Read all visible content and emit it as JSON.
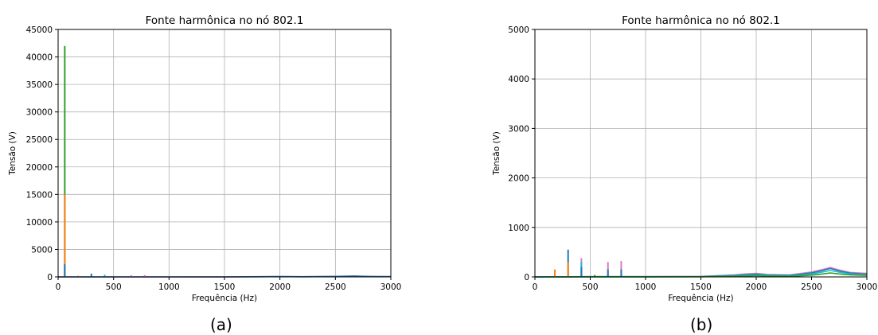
{
  "chart_data": [
    {
      "panel": "(a)",
      "type": "line",
      "title": "Fonte harmônica no nó 802.1",
      "xlabel": "Frequência (Hz)",
      "ylabel": "Tensão (V)",
      "xlim": [
        0,
        3000
      ],
      "ylim": [
        0,
        45000
      ],
      "xticks": [
        0,
        500,
        1000,
        1500,
        2000,
        2500,
        3000
      ],
      "yticks": [
        0,
        5000,
        10000,
        15000,
        20000,
        25000,
        30000,
        35000,
        40000,
        45000
      ],
      "grid": true,
      "spikes": [
        {
          "x": 60,
          "y": 42000,
          "color": "#2ca02c"
        },
        {
          "x": 60,
          "y": 15000,
          "color": "#ff7f0e"
        },
        {
          "x": 60,
          "y": 2300,
          "color": "#1f77b4"
        },
        {
          "x": 180,
          "y": 200,
          "color": "#ff7f0e"
        },
        {
          "x": 300,
          "y": 600,
          "color": "#1f77b4"
        },
        {
          "x": 420,
          "y": 400,
          "color": "#17becf"
        },
        {
          "x": 660,
          "y": 320,
          "color": "#e377c2"
        },
        {
          "x": 780,
          "y": 330,
          "color": "#e377c2"
        }
      ],
      "series": [
        {
          "color": "#e377c2",
          "x": [
            0,
            500,
            1000,
            1500,
            1800,
            2000,
            2200,
            2500,
            2600,
            2670,
            2750,
            2850,
            3000
          ],
          "values": [
            0,
            0,
            0,
            10,
            40,
            70,
            40,
            100,
            140,
            180,
            120,
            80,
            60
          ]
        },
        {
          "color": "#1f77b4",
          "x": [
            0,
            500,
            1000,
            1500,
            1800,
            2000,
            2200,
            2500,
            2600,
            2670,
            2750,
            2850,
            3000
          ],
          "values": [
            0,
            0,
            0,
            5,
            30,
            55,
            30,
            80,
            120,
            165,
            105,
            65,
            50
          ]
        }
      ]
    },
    {
      "panel": "(b)",
      "type": "line",
      "title": "Fonte harmônica no nó 802.1",
      "xlabel": "Frequência (Hz)",
      "ylabel": "Tensão (V)",
      "xlim": [
        0,
        3000
      ],
      "ylim": [
        0,
        5000
      ],
      "xticks": [
        0,
        500,
        1000,
        1500,
        2000,
        2500,
        3000
      ],
      "yticks": [
        0,
        1000,
        2000,
        3000,
        4000,
        5000
      ],
      "grid": true,
      "spikes": [
        {
          "x": 180,
          "y": 150,
          "color": "#ff7f0e"
        },
        {
          "x": 300,
          "y": 550,
          "color": "#1f77b4"
        },
        {
          "x": 300,
          "y": 300,
          "color": "#ff7f0e"
        },
        {
          "x": 420,
          "y": 380,
          "color": "#e377c2"
        },
        {
          "x": 420,
          "y": 300,
          "color": "#17becf"
        },
        {
          "x": 420,
          "y": 200,
          "color": "#1f77b4"
        },
        {
          "x": 540,
          "y": 40,
          "color": "#2ca02c"
        },
        {
          "x": 660,
          "y": 300,
          "color": "#e377c2"
        },
        {
          "x": 660,
          "y": 150,
          "color": "#1f77b4"
        },
        {
          "x": 780,
          "y": 320,
          "color": "#e377c2"
        },
        {
          "x": 780,
          "y": 150,
          "color": "#1f77b4"
        }
      ],
      "series": [
        {
          "color": "#e377c2",
          "x": [
            0,
            500,
            1000,
            1500,
            1800,
            1900,
            2000,
            2100,
            2300,
            2500,
            2600,
            2670,
            2750,
            2850,
            3000
          ],
          "values": [
            0,
            5,
            5,
            10,
            40,
            60,
            70,
            50,
            40,
            100,
            150,
            190,
            140,
            90,
            70
          ]
        },
        {
          "color": "#1f77b4",
          "x": [
            0,
            500,
            1000,
            1500,
            1800,
            1900,
            2000,
            2100,
            2300,
            2500,
            2600,
            2670,
            2750,
            2850,
            3000
          ],
          "values": [
            0,
            5,
            5,
            8,
            30,
            45,
            55,
            40,
            30,
            80,
            130,
            170,
            120,
            75,
            55
          ]
        },
        {
          "color": "#17becf",
          "x": [
            0,
            500,
            1000,
            1500,
            1800,
            1900,
            2000,
            2100,
            2300,
            2500,
            2600,
            2670,
            2750,
            2850,
            3000
          ],
          "values": [
            0,
            3,
            3,
            5,
            20,
            30,
            40,
            30,
            20,
            60,
            100,
            130,
            95,
            60,
            45
          ]
        },
        {
          "color": "#2ca02c",
          "x": [
            0,
            500,
            1000,
            1500,
            1800,
            1900,
            2000,
            2100,
            2300,
            2500,
            2600,
            2670,
            2750,
            2850,
            3000
          ],
          "values": [
            0,
            2,
            2,
            3,
            12,
            18,
            25,
            18,
            12,
            35,
            60,
            80,
            60,
            40,
            30
          ]
        }
      ]
    }
  ],
  "panel_labels": [
    "(a)",
    "(b)"
  ]
}
